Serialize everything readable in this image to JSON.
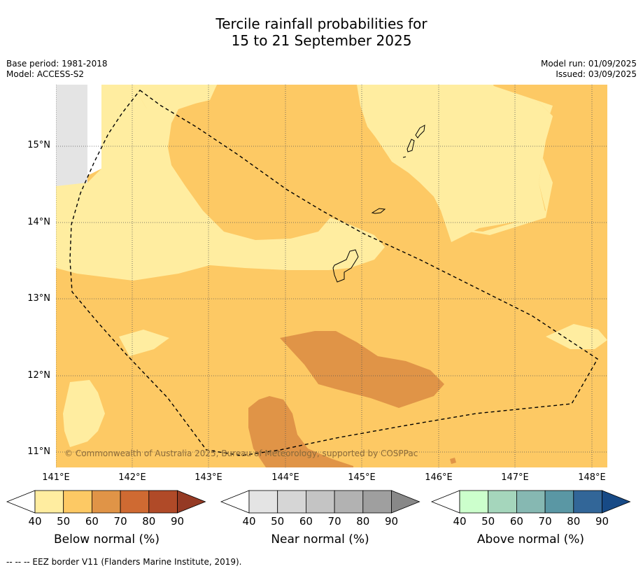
{
  "title_line1": "Tercile rainfall probabilities for",
  "title_line2": "15 to 21 September 2025",
  "base_period": "Base period: 1981-2018",
  "model": "Model: ACCESS-S2",
  "model_run": "Model run: 01/09/2025",
  "issued": "Issued: 03/09/2025",
  "copyright": "© Commonwealth of Australia 2025, Bureau of Meteorology, supported by COSPPac",
  "footer": "--  --  -- EEZ border V11 (Flanders Marine Institute, 2019).",
  "lat_ticks": [
    "15°N",
    "14°N",
    "13°N",
    "12°N",
    "11°N"
  ],
  "lon_ticks": [
    "141°E",
    "142°E",
    "143°E",
    "144°E",
    "145°E",
    "146°E",
    "147°E",
    "148°E"
  ],
  "colorbars": [
    {
      "label": "Below normal (%)",
      "ticks": [
        "40",
        "50",
        "60",
        "70",
        "80",
        "90"
      ],
      "colors": [
        "#ffeda0",
        "#fdc964",
        "#e09447",
        "#cf6a32",
        "#b04a28",
        "#953a24"
      ]
    },
    {
      "label": "Near normal (%)",
      "ticks": [
        "40",
        "50",
        "60",
        "70",
        "80",
        "90"
      ],
      "colors": [
        "#e4e4e4",
        "#d6d6d6",
        "#c4c4c4",
        "#b2b2b2",
        "#9f9f9f",
        "#888888"
      ]
    },
    {
      "label": "Above normal (%)",
      "ticks": [
        "40",
        "50",
        "60",
        "70",
        "80",
        "90"
      ],
      "colors": [
        "#ccffcc",
        "#a5d6bc",
        "#86b8b2",
        "#5a97a4",
        "#326698",
        "#174a86"
      ]
    }
  ],
  "map_colors": {
    "below_40_50": "#ffeda0",
    "below_50_60": "#fdc964",
    "below_60_70": "#e09447",
    "near_40_50": "#e4e4e4",
    "eez_border": "#000000"
  }
}
